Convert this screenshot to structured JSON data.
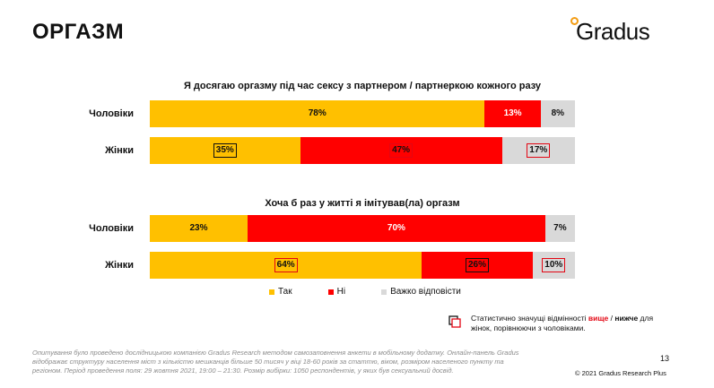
{
  "page": {
    "title": "ОРГАЗМ",
    "logo_text": "Gradus",
    "page_number": "13",
    "copyright": "© 2021 Gradus Research Plus",
    "footer": "Опитування було проведено дослідницькою компанією Gradus Research методом самозаповнення анкети в мобільному додатку. Онлайн-панель Gradus відображає структуру населення міст з кількістю мешканців більше 50 тисяч у віці 18-60 років за статтю, віком, розміром населеного пункту та регіоном. Період проведення поля: 29 жовтня 2021, 19:00 – 21:30. Розмір вибірки: 1050 респондентів, у яких був сексуальний досвід.",
    "note_prefix": "Статистично значущі відмінності ",
    "note_high": "вище",
    "note_sep": " / ",
    "note_low": "нижче",
    "note_suffix": " для жінок, порівнюючи з чоловіками.",
    "colors": {
      "yes": "#ffc000",
      "no": "#ff0000",
      "hard": "#d9d9d9",
      "logo_accent": "#f39c12"
    }
  },
  "legend": [
    {
      "label": "Так",
      "color": "#ffc000"
    },
    {
      "label": "Ні",
      "color": "#ff0000"
    },
    {
      "label": "Важко відповісти",
      "color": "#d9d9d9"
    }
  ],
  "chart_data": [
    {
      "type": "bar",
      "orientation": "horizontal",
      "stacked": true,
      "title": "Я досягаю оргазму під час сексу з партнером / партнеркою кожного разу",
      "categories": [
        "Чоловіки",
        "Жінки"
      ],
      "series": [
        {
          "name": "Так",
          "values": [
            78,
            35
          ],
          "labels": [
            "78%",
            "35%"
          ],
          "significant": [
            null,
            "lower"
          ]
        },
        {
          "name": "Ні",
          "values": [
            13,
            47
          ],
          "labels": [
            "13%",
            "47%"
          ],
          "significant": [
            null,
            "higher"
          ]
        },
        {
          "name": "Важко відповісти",
          "values": [
            8,
            17
          ],
          "labels": [
            "8%",
            "17%"
          ],
          "significant": [
            null,
            "higher"
          ]
        }
      ]
    },
    {
      "type": "bar",
      "orientation": "horizontal",
      "stacked": true,
      "title": "Хоча б раз у житті я імітував(ла) оргазм",
      "categories": [
        "Чоловіки",
        "Жінки"
      ],
      "series": [
        {
          "name": "Так",
          "values": [
            23,
            64
          ],
          "labels": [
            "23%",
            "64%"
          ],
          "significant": [
            null,
            "higher"
          ]
        },
        {
          "name": "Ні",
          "values": [
            70,
            26
          ],
          "labels": [
            "70%",
            "26%"
          ],
          "significant": [
            null,
            "lower"
          ]
        },
        {
          "name": "Важко відповісти",
          "values": [
            7,
            10
          ],
          "labels": [
            "7%",
            "10%"
          ],
          "significant": [
            null,
            "higher"
          ]
        }
      ]
    }
  ]
}
